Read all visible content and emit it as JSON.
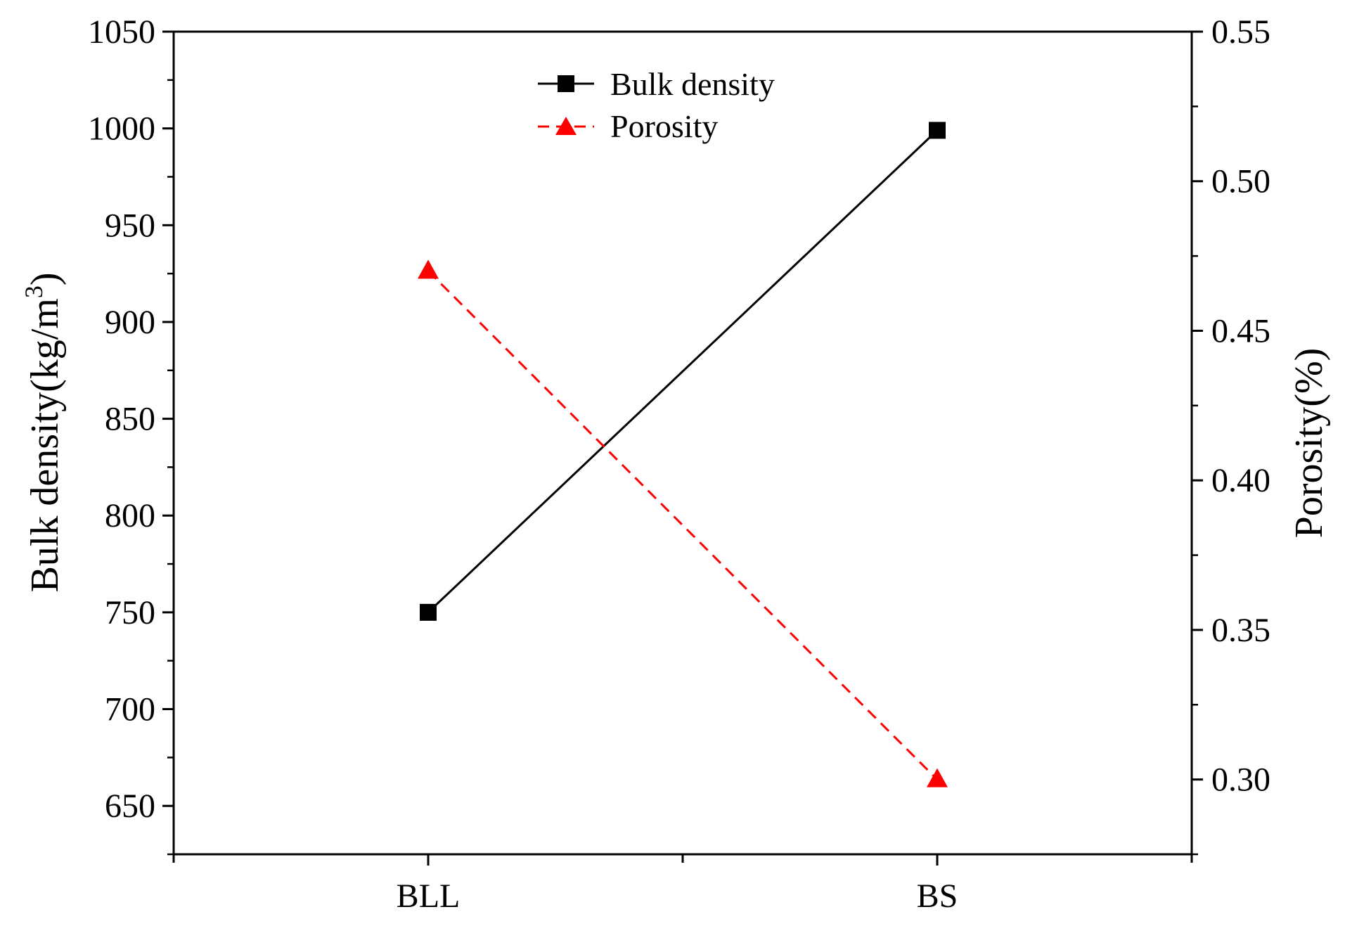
{
  "chart_data": {
    "type": "line",
    "categories": [
      "BLL",
      "BS"
    ],
    "series": [
      {
        "name": "Bulk density",
        "axis": "left",
        "values": [
          750,
          999
        ],
        "color": "#000000",
        "line_style": "solid",
        "marker": "square"
      },
      {
        "name": "Porosity",
        "axis": "right",
        "values": [
          0.47,
          0.3
        ],
        "color": "#ff0000",
        "line_style": "dashed",
        "marker": "triangle"
      }
    ],
    "y_left": {
      "label_main": "Bulk density(kg/m",
      "label_sup": "3",
      "label_close": ")",
      "ylim": [
        625,
        1050
      ],
      "ticks": [
        "650",
        "700",
        "750",
        "800",
        "850",
        "900",
        "950",
        "1000",
        "1050"
      ]
    },
    "y_right": {
      "label": "Porosity(%)",
      "ylim": [
        0.275,
        0.55
      ],
      "ticks": [
        "0.30",
        "0.35",
        "0.40",
        "0.45",
        "0.50",
        "0.55"
      ]
    },
    "legend_position": "top-center",
    "grid": false
  }
}
